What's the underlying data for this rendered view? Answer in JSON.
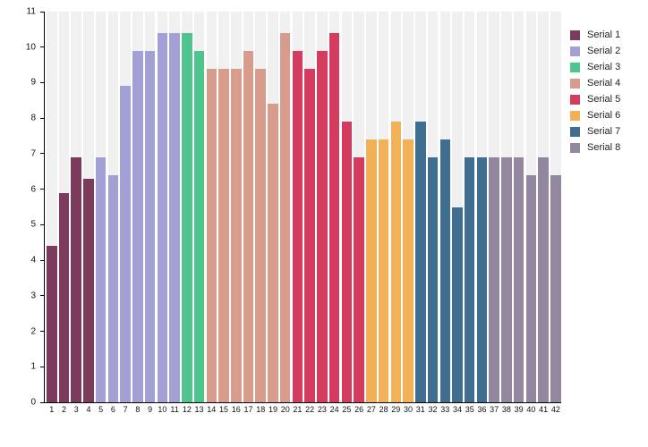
{
  "chart_data": {
    "type": "bar",
    "title": "",
    "xlabel": "",
    "ylabel": "",
    "ylim": [
      0,
      11
    ],
    "y_ticks": [
      0,
      1,
      2,
      3,
      4,
      5,
      6,
      7,
      8,
      9,
      10,
      11
    ],
    "legend_position": "right-top",
    "grid": "light-gray category backdrop columns, no horizontal gridlines",
    "colors": {
      "background": "#ffffff",
      "column_backdrop": "#f0f0f0",
      "axis": "#000000",
      "tick_text": "#111111"
    },
    "categories": [
      "1",
      "2",
      "3",
      "4",
      "5",
      "6",
      "7",
      "8",
      "9",
      "10",
      "11",
      "12",
      "13",
      "14",
      "15",
      "16",
      "17",
      "18",
      "19",
      "20",
      "21",
      "22",
      "23",
      "24",
      "25",
      "26",
      "27",
      "28",
      "29",
      "30",
      "31",
      "32",
      "33",
      "34",
      "35",
      "36",
      "37",
      "38",
      "39",
      "40",
      "41",
      "42"
    ],
    "series": [
      {
        "name": "Serial 1",
        "color": "#7C3B5D",
        "categories": [
          "1",
          "2",
          "3",
          "4"
        ],
        "values": [
          4.4,
          5.9,
          6.9,
          6.3
        ]
      },
      {
        "name": "Serial 2",
        "color": "#A2A0D4",
        "categories": [
          "5",
          "6",
          "7",
          "8",
          "9",
          "10",
          "11"
        ],
        "values": [
          6.9,
          6.4,
          8.9,
          9.9,
          9.9,
          10.4,
          10.4
        ]
      },
      {
        "name": "Serial 3",
        "color": "#4FC48F",
        "categories": [
          "12",
          "13"
        ],
        "values": [
          10.4,
          9.9
        ]
      },
      {
        "name": "Serial 4",
        "color": "#D79C8B",
        "categories": [
          "14",
          "15",
          "16",
          "17",
          "18",
          "19",
          "20"
        ],
        "values": [
          9.4,
          9.4,
          9.4,
          9.9,
          9.4,
          8.4,
          10.4
        ]
      },
      {
        "name": "Serial 5",
        "color": "#D53B5E",
        "categories": [
          "21",
          "22",
          "23",
          "24",
          "25",
          "26"
        ],
        "values": [
          9.9,
          9.4,
          9.9,
          10.4,
          7.9,
          6.9
        ]
      },
      {
        "name": "Serial 6",
        "color": "#F2B157",
        "categories": [
          "27",
          "28",
          "29",
          "30"
        ],
        "values": [
          7.4,
          7.4,
          7.9,
          7.4
        ]
      },
      {
        "name": "Serial 7",
        "color": "#3F6E91",
        "categories": [
          "31",
          "32",
          "33",
          "34",
          "35",
          "36"
        ],
        "values": [
          7.9,
          6.9,
          7.4,
          5.5,
          6.9,
          6.9
        ]
      },
      {
        "name": "Serial 8",
        "color": "#93879F",
        "categories": [
          "37",
          "38",
          "39",
          "40",
          "41",
          "42"
        ],
        "values": [
          6.9,
          6.9,
          6.9,
          6.4,
          6.9,
          6.4
        ]
      }
    ]
  }
}
